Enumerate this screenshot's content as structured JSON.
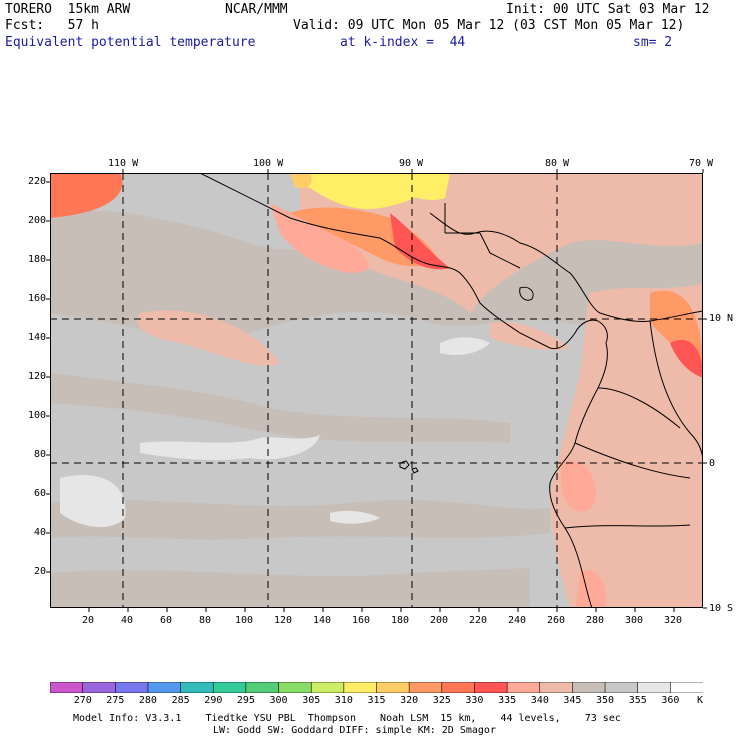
{
  "header": {
    "model": "TORERO  15km ARW",
    "center": "NCAR/MMM",
    "init": "Init: 00 UTC Sat 03 Mar 12",
    "fcst": "Fcst:   57 h",
    "valid": "Valid: 09 UTC Mon 05 Mar 12 (03 CST Mon 05 Mar 12)",
    "field": "Equivalent potential temperature",
    "level": "at k-index =  44",
    "smooth": "sm= 2"
  },
  "map": {
    "top_lon_labels": [
      "110 W",
      "100 W",
      "90 W",
      "80 W",
      "70 W"
    ],
    "right_lat_labels": [
      "10 N",
      "0",
      "10 S"
    ],
    "left_ticks": [
      "220",
      "200",
      "180",
      "160",
      "140",
      "120",
      "100",
      "80",
      "60",
      "40",
      "20"
    ],
    "bottom_ticks": [
      "20",
      "40",
      "60",
      "80",
      "100",
      "120",
      "140",
      "160",
      "180",
      "200",
      "220",
      "240",
      "260",
      "280",
      "300",
      "320"
    ]
  },
  "legend": {
    "unit": "K",
    "levels": [
      "270",
      "275",
      "280",
      "285",
      "290",
      "295",
      "300",
      "305",
      "310",
      "315",
      "320",
      "325",
      "330",
      "335",
      "340",
      "345",
      "350",
      "355",
      "360"
    ],
    "colors": [
      "#cc55cc",
      "#9966dd",
      "#7777ee",
      "#5599ee",
      "#33bbbb",
      "#33cc99",
      "#55cc77",
      "#88dd66",
      "#ccee66",
      "#ffee66",
      "#ffcc66",
      "#ff9966",
      "#ff7755",
      "#ff5555",
      "#ffaa99",
      "#eebbaa",
      "#c8beb8",
      "#c8c8c8",
      "#e6e6e6",
      "#ffffff"
    ]
  },
  "footer": {
    "line1": "Model Info: V3.3.1    Tiedtke YSU PBL  Thompson    Noah LSM  15 km,    44 levels,    73 sec",
    "line2": "LW: Godd SW: Goddard DIFF: simple KM: 2D Smagor"
  }
}
